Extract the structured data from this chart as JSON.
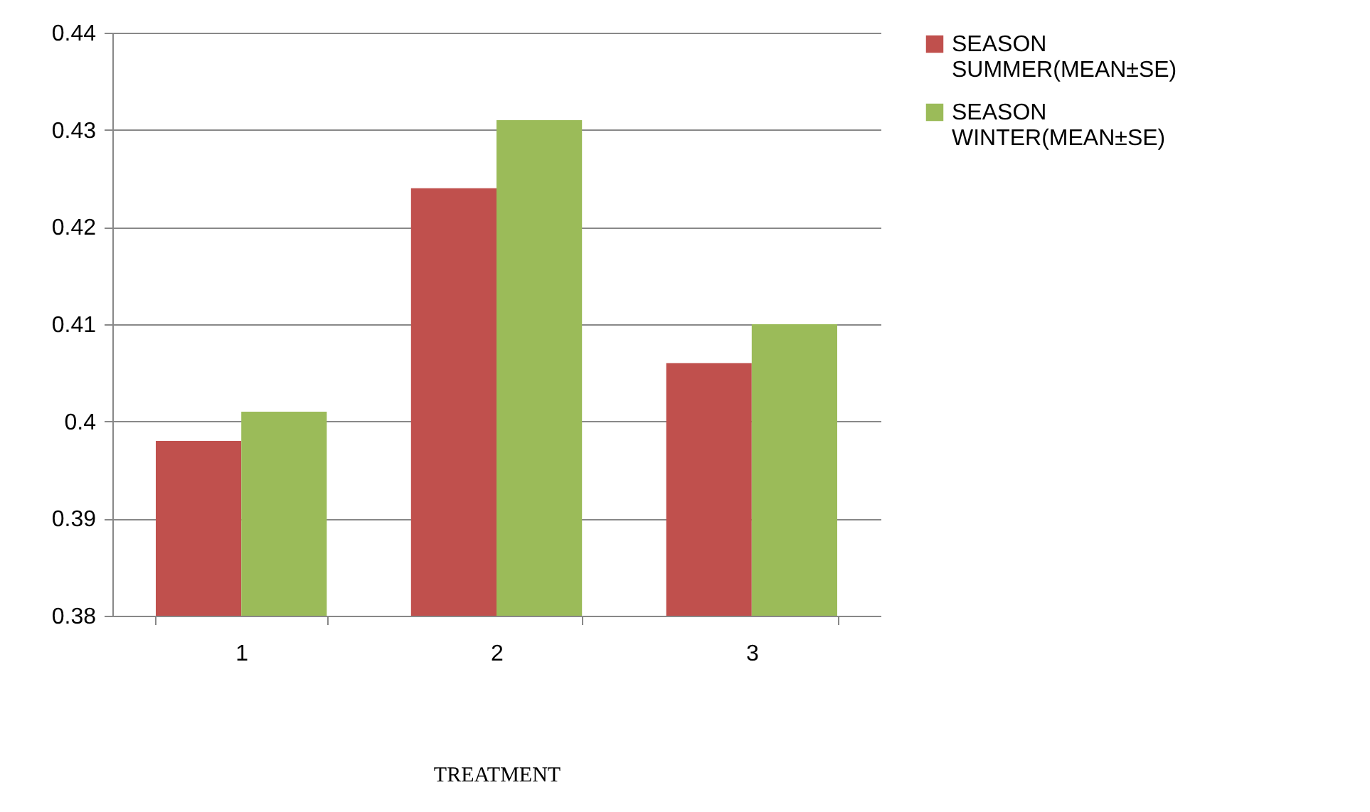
{
  "chart_data": {
    "type": "bar",
    "xlabel": "TREATMENT",
    "categories": [
      "1",
      "2",
      "3"
    ],
    "series": [
      {
        "name": "SEASON SUMMER(MEAN±SE)",
        "color": "#c0504d",
        "values": [
          0.398,
          0.424,
          0.406
        ]
      },
      {
        "name": "SEASON WINTER(MEAN±SE)",
        "color": "#9bbb59",
        "values": [
          0.401,
          0.431,
          0.41
        ]
      }
    ],
    "ylim": [
      0.38,
      0.44
    ],
    "yticks": [
      0.38,
      0.39,
      0.4,
      0.41,
      0.42,
      0.43,
      0.44
    ],
    "grid": "y",
    "legend": "right"
  }
}
